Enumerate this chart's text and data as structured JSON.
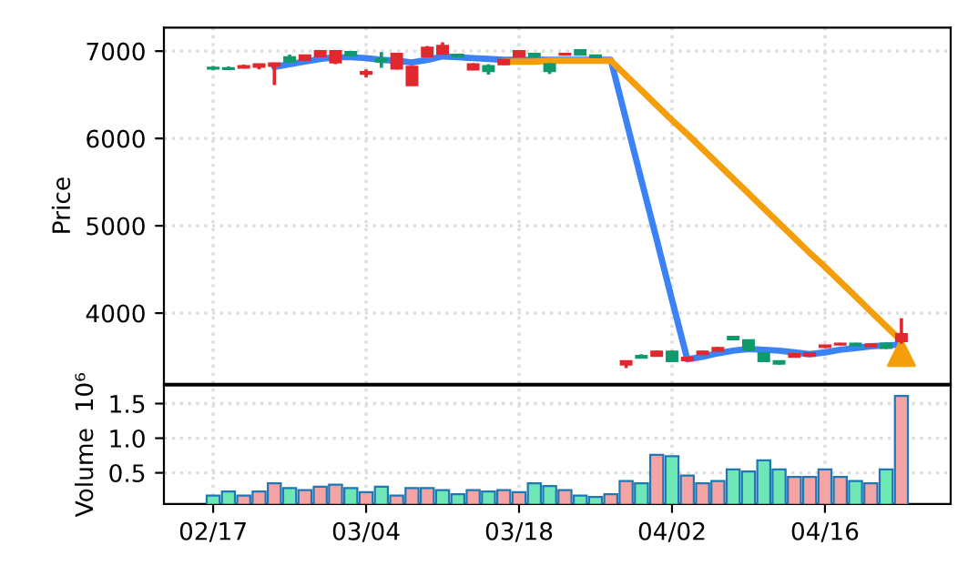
{
  "chart_data": [
    {
      "type": "candlestick",
      "ylabel": "Price",
      "grid": true,
      "tick_labels": "y",
      "categories": [
        null,
        null,
        null,
        null,
        null,
        null,
        null,
        null,
        null,
        null,
        null,
        null,
        null,
        null,
        null,
        null,
        null,
        null,
        null,
        null,
        null,
        null,
        null,
        null,
        null,
        null,
        null,
        null,
        null,
        null,
        null,
        null,
        null,
        null,
        null,
        null,
        null,
        null,
        null,
        null,
        null,
        null,
        null,
        null,
        null,
        null
      ],
      "ohlc": [
        [
          6800,
          6830,
          6780,
          6810
        ],
        [
          6795,
          6825,
          6785,
          6805
        ],
        [
          6830,
          6845,
          6800,
          6810
        ],
        [
          6850,
          6855,
          6790,
          6820
        ],
        [
          6860,
          6870,
          6610,
          6830
        ],
        [
          6880,
          6960,
          6860,
          6930
        ],
        [
          6950,
          6960,
          6890,
          6900
        ],
        [
          7000,
          7010,
          6930,
          6940
        ],
        [
          7000,
          7010,
          6850,
          6870
        ],
        [
          6950,
          7000,
          6940,
          6990
        ],
        [
          6760,
          6790,
          6700,
          6740
        ],
        [
          6880,
          6990,
          6810,
          6910
        ],
        [
          6970,
          6980,
          6790,
          6800
        ],
        [
          6820,
          6830,
          6610,
          6610
        ],
        [
          7040,
          7060,
          6930,
          6940
        ],
        [
          7060,
          7100,
          6960,
          6970
        ],
        [
          6940,
          6970,
          6930,
          6960
        ],
        [
          6850,
          6860,
          6780,
          6790
        ],
        [
          6770,
          6850,
          6730,
          6830
        ],
        [
          6900,
          6910,
          6840,
          6850
        ],
        [
          7000,
          7010,
          6930,
          6940
        ],
        [
          6940,
          6980,
          6930,
          6970
        ],
        [
          6770,
          6860,
          6740,
          6850
        ],
        [
          6970,
          6980,
          6950,
          6960
        ],
        [
          6960,
          7020,
          6950,
          7010
        ],
        [
          6930,
          6960,
          6920,
          6950
        ],
        null,
        [
          3450,
          3460,
          3370,
          3410
        ],
        [
          3490,
          3530,
          3480,
          3510
        ],
        [
          3560,
          3570,
          3500,
          3510
        ],
        [
          3450,
          3570,
          3440,
          3560
        ],
        [
          3490,
          3500,
          3450,
          3460
        ],
        [
          3560,
          3570,
          3520,
          3530
        ],
        [
          3600,
          3610,
          3560,
          3570
        ],
        [
          3700,
          3730,
          3700,
          3730
        ],
        [
          3580,
          3700,
          3570,
          3690
        ],
        [
          3450,
          3550,
          3440,
          3540
        ],
        [
          3420,
          3460,
          3410,
          3450
        ],
        [
          3530,
          3540,
          3490,
          3500
        ],
        [
          3540,
          3550,
          3500,
          3510
        ],
        [
          3630,
          3640,
          3600,
          3610
        ],
        [
          3650,
          3660,
          3630,
          3640
        ],
        [
          3630,
          3660,
          3620,
          3650
        ],
        [
          3640,
          3650,
          3610,
          3620
        ],
        [
          3600,
          3660,
          3590,
          3650
        ],
        [
          3760,
          3940,
          3650,
          3680
        ]
      ],
      "colors": [
        "#0f9a6e",
        "#0f9a6e",
        "#e0282e",
        "#e0282e",
        "#e0282e",
        "#0f9a6e",
        "#e0282e",
        "#e0282e",
        "#e0282e",
        "#0f9a6e",
        "#e0282e",
        "#0f9a6e",
        "#e0282e",
        "#e0282e",
        "#e0282e",
        "#e0282e",
        "#0f9a6e",
        "#e0282e",
        "#0f9a6e",
        "#e0282e",
        "#e0282e",
        "#0f9a6e",
        "#0f9a6e",
        "#e0282e",
        "#0f9a6e",
        "#0f9a6e",
        null,
        "#e0282e",
        "#0f9a6e",
        "#e0282e",
        "#0f9a6e",
        "#e0282e",
        "#e0282e",
        "#e0282e",
        "#0f9a6e",
        "#0f9a6e",
        "#0f9a6e",
        "#0f9a6e",
        "#e0282e",
        "#e0282e",
        "#e0282e",
        "#e0282e",
        "#0f9a6e",
        "#e0282e",
        "#0f9a6e",
        "#e0282e"
      ],
      "series": [
        {
          "type": "line",
          "color": "#3b82f6",
          "values": [
            null,
            null,
            null,
            null,
            6820,
            6850,
            6880,
            6910,
            6930,
            6930,
            6920,
            6900,
            6890,
            6870,
            6900,
            6940,
            6930,
            6920,
            6910,
            6900,
            6900,
            6900,
            6900,
            6900,
            6900,
            6900,
            6900,
            6210,
            5520,
            4840,
            4150,
            3470,
            3500,
            3540,
            3570,
            3590,
            3580,
            3570,
            3550,
            3530,
            3550,
            3580,
            3600,
            3620,
            3630,
            3640
          ]
        },
        {
          "type": "line",
          "color": "#f59e0b",
          "values": [
            null,
            null,
            null,
            null,
            null,
            null,
            null,
            null,
            null,
            null,
            null,
            null,
            null,
            null,
            null,
            null,
            null,
            null,
            null,
            6880,
            6880,
            6880,
            6890,
            6890,
            6890,
            6890,
            6890,
            6720,
            6550,
            6380,
            6210,
            6050,
            5880,
            5710,
            5540,
            5370,
            5200,
            5030,
            4860,
            4690,
            4530,
            4360,
            4190,
            4020,
            3850,
            3680
          ]
        },
        {
          "type": "scatter",
          "marker": "triangle",
          "color": "#f59e0b",
          "values": [
            null,
            null,
            null,
            null,
            null,
            null,
            null,
            null,
            null,
            null,
            null,
            null,
            null,
            null,
            null,
            null,
            null,
            null,
            null,
            null,
            null,
            null,
            null,
            null,
            null,
            null,
            null,
            null,
            null,
            null,
            null,
            null,
            null,
            null,
            null,
            null,
            null,
            null,
            null,
            null,
            null,
            null,
            null,
            null,
            null,
            3550
          ]
        }
      ],
      "ylim": [
        3190,
        7270
      ],
      "yticks": [
        4000,
        5000,
        6000,
        7000
      ]
    },
    {
      "type": "bar",
      "ylabel": "Volume  10⁶",
      "grid": true,
      "categories": [
        "02/17",
        null,
        null,
        null,
        null,
        null,
        null,
        null,
        null,
        null,
        "03/04",
        null,
        null,
        null,
        null,
        null,
        null,
        null,
        null,
        null,
        "03/18",
        null,
        null,
        null,
        null,
        null,
        null,
        null,
        null,
        null,
        "04/02",
        null,
        null,
        null,
        null,
        null,
        null,
        null,
        null,
        null,
        "04/16",
        null,
        null,
        null,
        null,
        null
      ],
      "values": [
        0.17,
        0.23,
        0.17,
        0.23,
        0.35,
        0.28,
        0.25,
        0.3,
        0.33,
        0.28,
        0.22,
        0.3,
        0.17,
        0.28,
        0.28,
        0.25,
        0.19,
        0.25,
        0.23,
        0.25,
        0.22,
        0.35,
        0.31,
        0.25,
        0.17,
        0.15,
        0.19,
        0.38,
        0.35,
        0.76,
        0.74,
        0.46,
        0.35,
        0.38,
        0.55,
        0.52,
        0.68,
        0.55,
        0.44,
        0.44,
        0.55,
        0.44,
        0.38,
        0.35,
        0.55,
        1.61
      ],
      "colors": [
        "#6ee6b6",
        "#6ee6b6",
        "#f4a4a4",
        "#f4a4a4",
        "#f4a4a4",
        "#6ee6b6",
        "#f4a4a4",
        "#f4a4a4",
        "#f4a4a4",
        "#6ee6b6",
        "#f4a4a4",
        "#6ee6b6",
        "#f4a4a4",
        "#f4a4a4",
        "#f4a4a4",
        "#6ee6b6",
        "#6ee6b6",
        "#f4a4a4",
        "#6ee6b6",
        "#f4a4a4",
        "#f4a4a4",
        "#6ee6b6",
        "#6ee6b6",
        "#f4a4a4",
        "#6ee6b6",
        "#6ee6b6",
        "#f4a4a4",
        "#f4a4a4",
        "#6ee6b6",
        "#f4a4a4",
        "#6ee6b6",
        "#f4a4a4",
        "#f4a4a4",
        "#f4a4a4",
        "#6ee6b6",
        "#6ee6b6",
        "#6ee6b6",
        "#6ee6b6",
        "#f4a4a4",
        "#f4a4a4",
        "#f4a4a4",
        "#f4a4a4",
        "#6ee6b6",
        "#f4a4a4",
        "#6ee6b6",
        "#f4a4a4"
      ],
      "ylim": [
        0.05,
        1.76
      ],
      "yticks": [
        0.5,
        {
          "value": 1.0,
          "label": "1.0"
        },
        1.5
      ]
    }
  ]
}
